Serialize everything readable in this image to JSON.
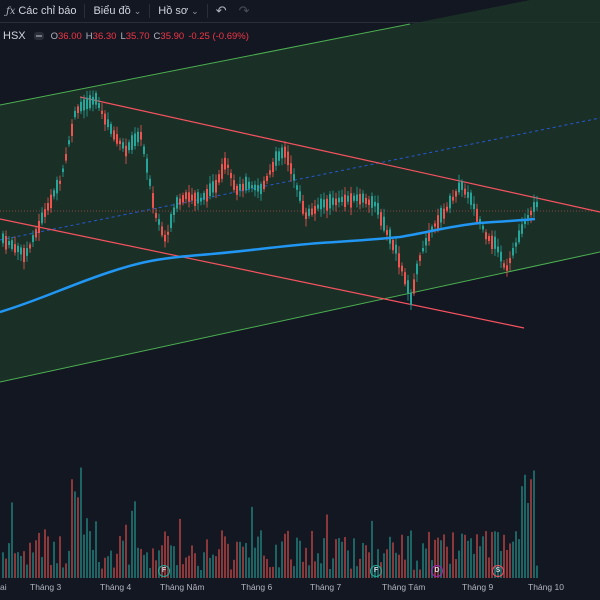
{
  "toolbar": {
    "indicators_label": "Các chỉ báo",
    "chart_label": "Biểu đồ",
    "profile_label": "Hồ sơ"
  },
  "legend": {
    "exchange": "HSX",
    "o_key": "O",
    "o_val": "36.00",
    "h_key": "H",
    "h_val": "36.30",
    "l_key": "L",
    "l_val": "35.70",
    "c_key": "C",
    "c_val": "35.90",
    "change": "-0.25 (-0.69%)"
  },
  "time_axis": [
    "ai",
    "Tháng 3",
    "Tháng 4",
    "Tháng Năm",
    "Tháng 6",
    "Tháng 7",
    "Tháng Tám",
    "Tháng 9",
    "Tháng 10"
  ],
  "event_badges": [
    {
      "label": "F",
      "color": "#22ab94"
    },
    {
      "label": "F",
      "color": "#22ab94"
    },
    {
      "label": "D",
      "color": "#9c27b0"
    },
    {
      "label": "S",
      "color": "#f7525f"
    }
  ],
  "colors": {
    "up": "#26a69a",
    "down": "#ef5350",
    "ma": "#2196f3",
    "channel_fill": "#1e3a2a",
    "resistance": "#f7525f"
  }
}
